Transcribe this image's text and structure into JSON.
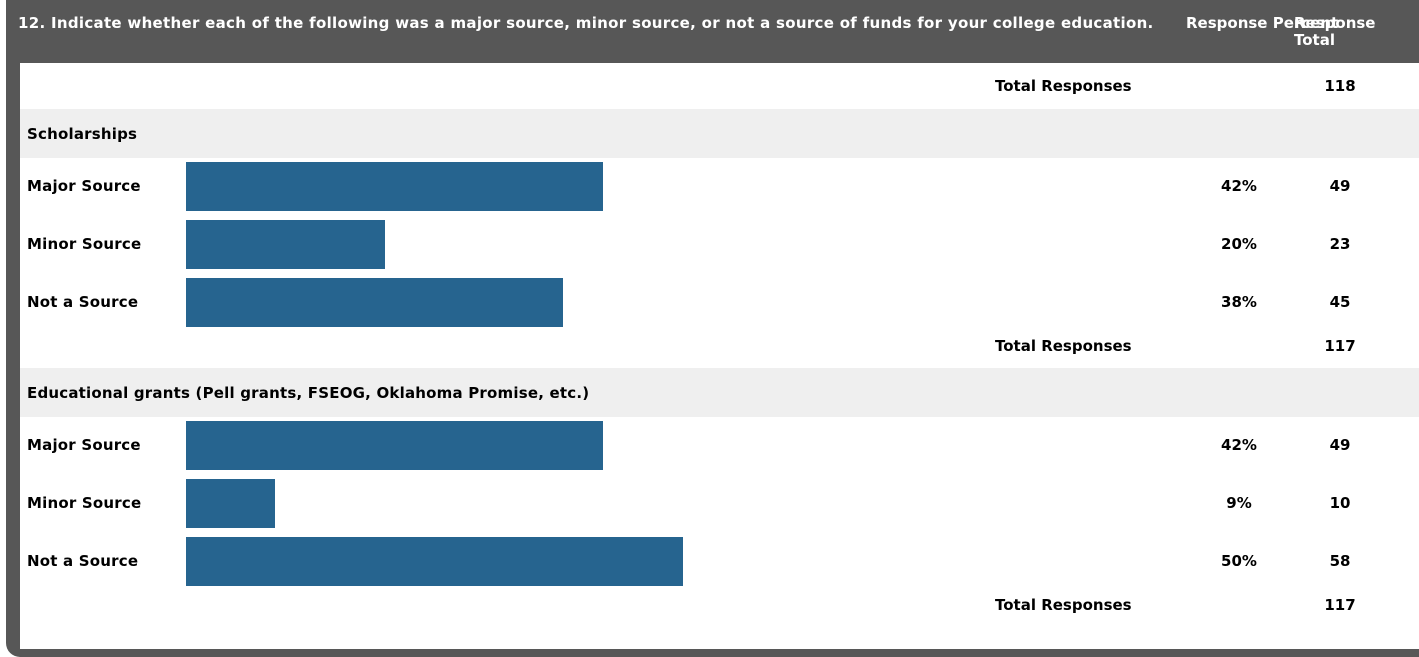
{
  "header": {
    "question": "12. Indicate whether each of the following was a major source, minor source, or not a source of funds for your college education.",
    "col_percent": "Response Percent",
    "col_total": "Response Total"
  },
  "total_label": "Total Responses",
  "top_total": "118",
  "sections": [
    {
      "title": "Scholarships",
      "rows": [
        {
          "label": "Major Source",
          "percent": "42%",
          "fraction": 0.42,
          "total": "49"
        },
        {
          "label": "Minor Source",
          "percent": "20%",
          "fraction": 0.2,
          "total": "23"
        },
        {
          "label": "Not a Source",
          "percent": "38%",
          "fraction": 0.38,
          "total": "45"
        }
      ],
      "total_responses": "117"
    },
    {
      "title": "Educational grants (Pell grants, FSEOG, Oklahoma Promise, etc.)",
      "rows": [
        {
          "label": "Major Source",
          "percent": "42%",
          "fraction": 0.42,
          "total": "49"
        },
        {
          "label": "Minor Source",
          "percent": "9%",
          "fraction": 0.09,
          "total": "10"
        },
        {
          "label": "Not a Source",
          "percent": "50%",
          "fraction": 0.5,
          "total": "58"
        }
      ],
      "total_responses": "117"
    }
  ],
  "colors": {
    "bar": "#26648f",
    "frame": "#575757",
    "section_bg": "#efefef"
  }
}
